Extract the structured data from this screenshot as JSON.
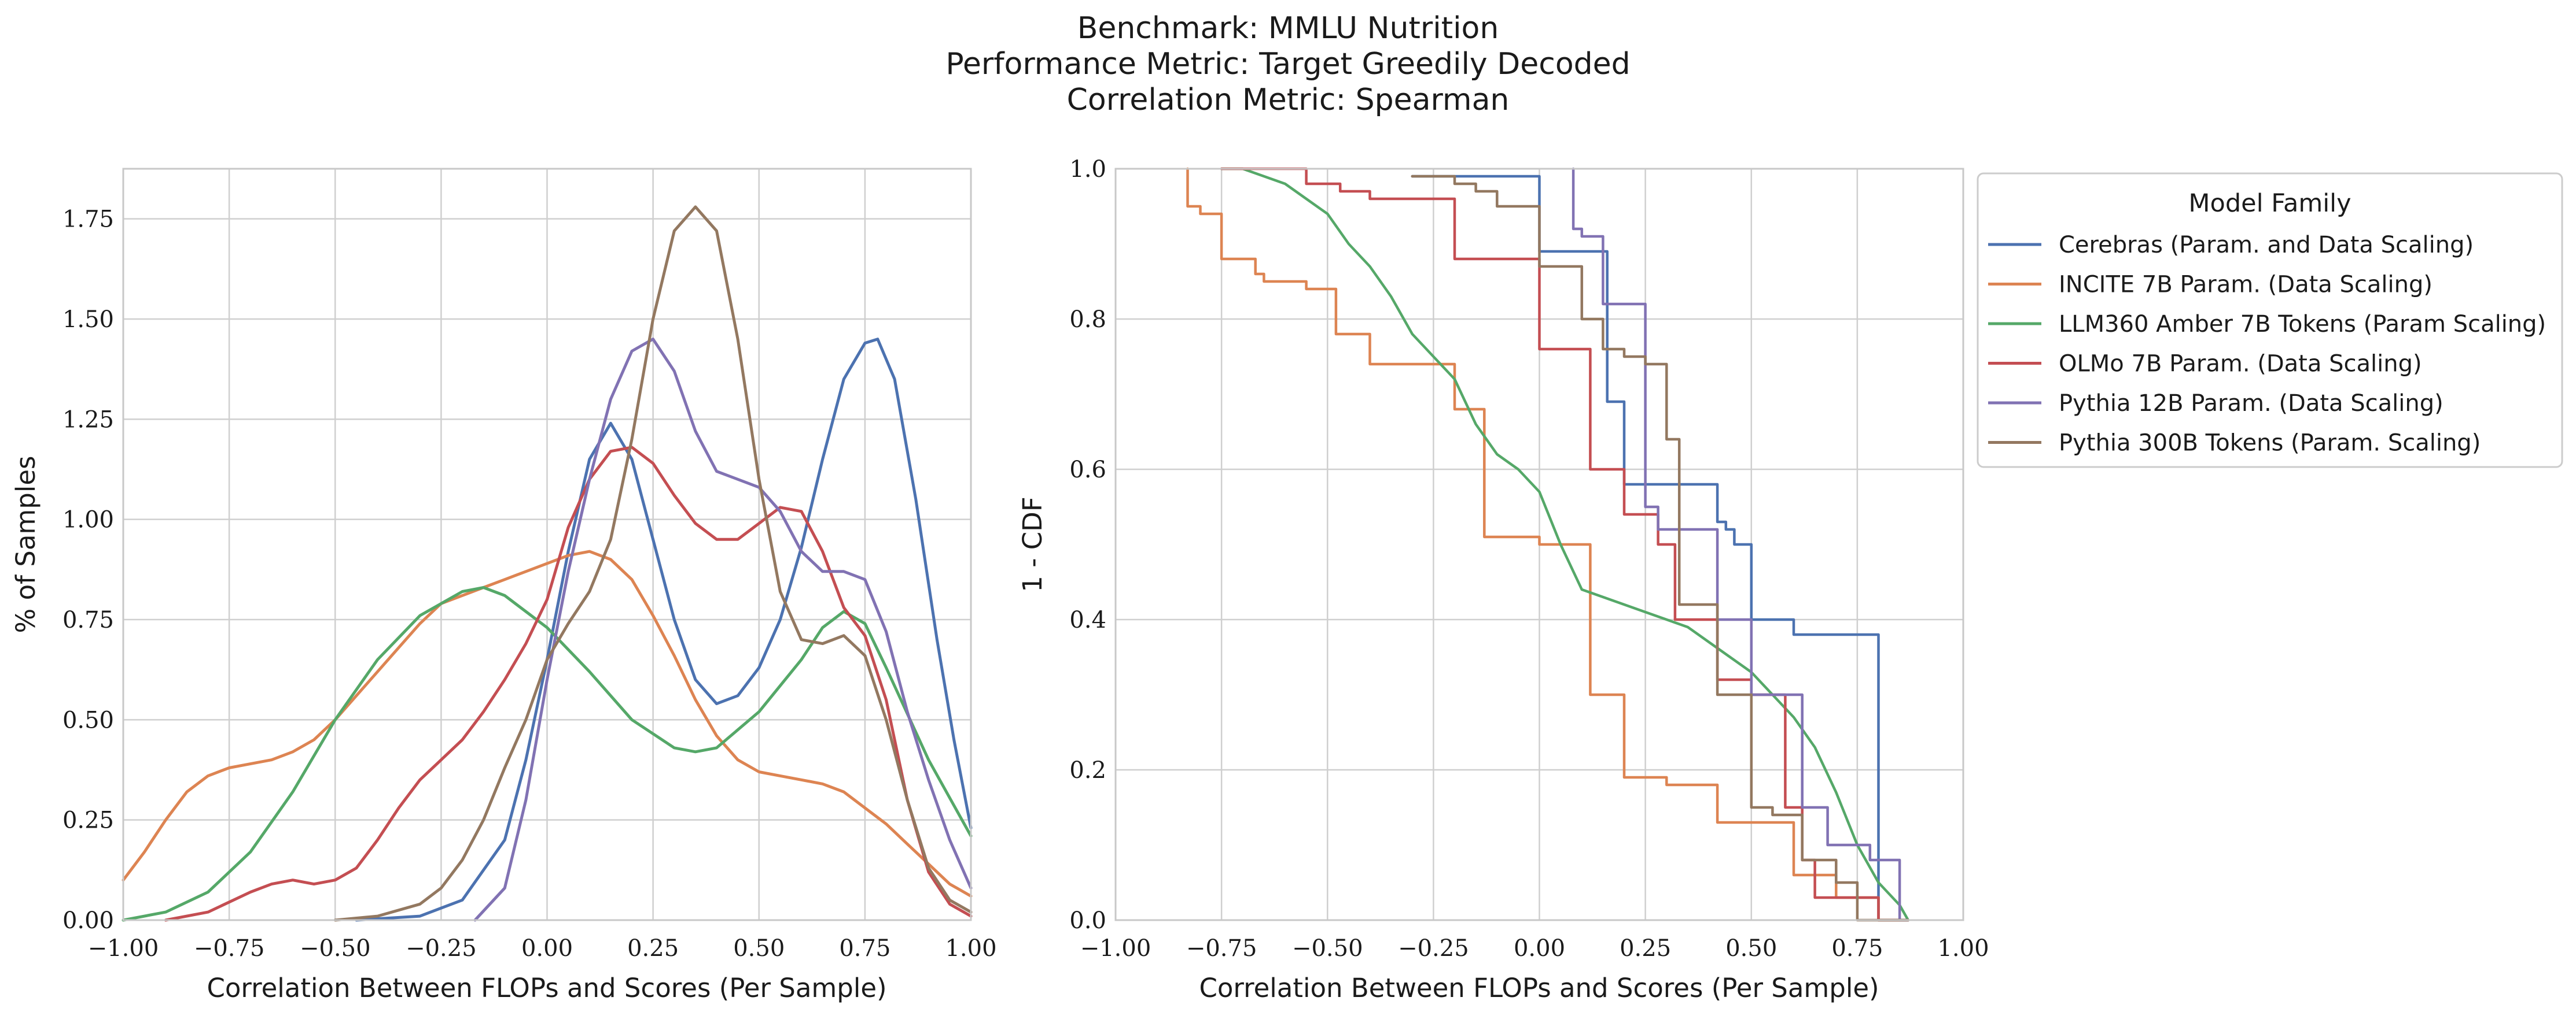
{
  "figure": {
    "title_lines": [
      "Benchmark: MMLU Nutrition",
      "Performance Metric: Target Greedily Decoded",
      "Correlation Metric: Spearman"
    ]
  },
  "colors": {
    "Cerebras": "#4c72b0",
    "INCITE": "#dd8452",
    "LLM360": "#55a868",
    "OLMo": "#c44e52",
    "Pythia12B": "#8172b3",
    "Pythia300B": "#937860",
    "grid": "#cfcfcf",
    "spine": "#c8c8c8"
  },
  "chart_data": [
    {
      "type": "line",
      "subtype": "kde",
      "xlabel": "Correlation Between FLOPs and Scores (Per Sample)",
      "ylabel": "% of Samples",
      "xlim": [
        -1.0,
        1.0
      ],
      "ylim": [
        0.0,
        1.875
      ],
      "xticks": [
        "−1.00",
        "−0.75",
        "−0.50",
        "−0.25",
        "0.00",
        "0.25",
        "0.50",
        "0.75",
        "1.00"
      ],
      "yticks": [
        "0.00",
        "0.25",
        "0.50",
        "0.75",
        "1.00",
        "1.25",
        "1.50",
        "1.75"
      ],
      "grid": true,
      "series": [
        {
          "name": "Cerebras (Param. and Data Scaling)",
          "color_key": "Cerebras",
          "x": [
            -0.45,
            -0.3,
            -0.2,
            -0.1,
            -0.05,
            0.0,
            0.05,
            0.1,
            0.15,
            0.2,
            0.25,
            0.3,
            0.35,
            0.4,
            0.45,
            0.5,
            0.55,
            0.6,
            0.65,
            0.7,
            0.75,
            0.78,
            0.82,
            0.87,
            0.92,
            0.96,
            1.0
          ],
          "y": [
            0.0,
            0.01,
            0.05,
            0.2,
            0.4,
            0.65,
            0.92,
            1.15,
            1.24,
            1.15,
            0.95,
            0.75,
            0.6,
            0.54,
            0.56,
            0.63,
            0.75,
            0.93,
            1.15,
            1.35,
            1.44,
            1.45,
            1.35,
            1.05,
            0.7,
            0.45,
            0.23
          ]
        },
        {
          "name": "INCITE 7B Param. (Data Scaling)",
          "color_key": "INCITE",
          "x": [
            -1.0,
            -0.95,
            -0.9,
            -0.85,
            -0.8,
            -0.75,
            -0.7,
            -0.65,
            -0.6,
            -0.55,
            -0.5,
            -0.45,
            -0.4,
            -0.35,
            -0.3,
            -0.25,
            -0.2,
            -0.15,
            -0.1,
            -0.05,
            0.0,
            0.05,
            0.1,
            0.15,
            0.2,
            0.25,
            0.3,
            0.35,
            0.4,
            0.45,
            0.5,
            0.55,
            0.6,
            0.65,
            0.7,
            0.75,
            0.8,
            0.85,
            0.9,
            0.95,
            1.0
          ],
          "y": [
            0.1,
            0.17,
            0.25,
            0.32,
            0.36,
            0.38,
            0.39,
            0.4,
            0.42,
            0.45,
            0.5,
            0.56,
            0.62,
            0.68,
            0.74,
            0.79,
            0.81,
            0.83,
            0.85,
            0.87,
            0.89,
            0.91,
            0.92,
            0.9,
            0.85,
            0.76,
            0.66,
            0.55,
            0.46,
            0.4,
            0.37,
            0.36,
            0.35,
            0.34,
            0.32,
            0.28,
            0.24,
            0.19,
            0.14,
            0.09,
            0.06
          ]
        },
        {
          "name": "LLM360 Amber 7B Tokens (Param Scaling)",
          "color_key": "LLM360",
          "x": [
            -1.0,
            -0.9,
            -0.8,
            -0.7,
            -0.6,
            -0.5,
            -0.4,
            -0.3,
            -0.2,
            -0.15,
            -0.1,
            0.0,
            0.1,
            0.2,
            0.3,
            0.35,
            0.4,
            0.5,
            0.6,
            0.65,
            0.7,
            0.75,
            0.8,
            0.9,
            1.0
          ],
          "y": [
            0.0,
            0.02,
            0.07,
            0.17,
            0.32,
            0.5,
            0.65,
            0.76,
            0.82,
            0.83,
            0.81,
            0.73,
            0.62,
            0.5,
            0.43,
            0.42,
            0.43,
            0.52,
            0.65,
            0.73,
            0.77,
            0.74,
            0.63,
            0.4,
            0.21
          ]
        },
        {
          "name": "OLMo 7B Param. (Data Scaling)",
          "color_key": "OLMo",
          "x": [
            -0.9,
            -0.8,
            -0.7,
            -0.65,
            -0.6,
            -0.55,
            -0.5,
            -0.45,
            -0.4,
            -0.35,
            -0.3,
            -0.25,
            -0.2,
            -0.15,
            -0.1,
            -0.05,
            0.0,
            0.05,
            0.1,
            0.15,
            0.2,
            0.25,
            0.3,
            0.35,
            0.4,
            0.45,
            0.5,
            0.55,
            0.6,
            0.65,
            0.7,
            0.75,
            0.8,
            0.85,
            0.9,
            0.95,
            1.0
          ],
          "y": [
            0.0,
            0.02,
            0.07,
            0.09,
            0.1,
            0.09,
            0.1,
            0.13,
            0.2,
            0.28,
            0.35,
            0.4,
            0.45,
            0.52,
            0.6,
            0.69,
            0.8,
            0.98,
            1.1,
            1.17,
            1.18,
            1.14,
            1.06,
            0.99,
            0.95,
            0.95,
            0.99,
            1.03,
            1.02,
            0.92,
            0.78,
            0.71,
            0.55,
            0.3,
            0.12,
            0.04,
            0.01
          ]
        },
        {
          "name": "Pythia 12B Param. (Data Scaling)",
          "color_key": "Pythia12B",
          "x": [
            -0.17,
            -0.1,
            -0.05,
            0.0,
            0.05,
            0.1,
            0.15,
            0.2,
            0.25,
            0.3,
            0.35,
            0.4,
            0.45,
            0.5,
            0.55,
            0.6,
            0.65,
            0.7,
            0.75,
            0.8,
            0.85,
            0.9,
            0.95,
            1.0
          ],
          "y": [
            0.0,
            0.08,
            0.3,
            0.6,
            0.87,
            1.1,
            1.3,
            1.42,
            1.45,
            1.37,
            1.22,
            1.12,
            1.1,
            1.08,
            1.02,
            0.92,
            0.87,
            0.87,
            0.85,
            0.72,
            0.52,
            0.35,
            0.2,
            0.08
          ]
        },
        {
          "name": "Pythia 300B Tokens (Param. Scaling)",
          "color_key": "Pythia300B",
          "x": [
            -0.5,
            -0.4,
            -0.3,
            -0.25,
            -0.2,
            -0.15,
            -0.1,
            -0.05,
            0.0,
            0.05,
            0.1,
            0.15,
            0.2,
            0.25,
            0.3,
            0.35,
            0.4,
            0.45,
            0.5,
            0.55,
            0.6,
            0.65,
            0.7,
            0.75,
            0.8,
            0.85,
            0.9,
            0.95,
            1.0
          ],
          "y": [
            0.0,
            0.01,
            0.04,
            0.08,
            0.15,
            0.25,
            0.38,
            0.5,
            0.65,
            0.74,
            0.82,
            0.95,
            1.2,
            1.5,
            1.72,
            1.78,
            1.72,
            1.45,
            1.1,
            0.82,
            0.7,
            0.69,
            0.71,
            0.66,
            0.5,
            0.3,
            0.13,
            0.05,
            0.02
          ]
        }
      ]
    },
    {
      "type": "line",
      "subtype": "step",
      "xlabel": "Correlation Between FLOPs and Scores (Per Sample)",
      "ylabel": "1 - CDF",
      "xlim": [
        -1.0,
        1.0
      ],
      "ylim": [
        0.0,
        1.0
      ],
      "xticks": [
        "−1.00",
        "−0.75",
        "−0.50",
        "−0.25",
        "0.00",
        "0.25",
        "0.50",
        "0.75",
        "1.00"
      ],
      "yticks": [
        "0.0",
        "0.2",
        "0.4",
        "0.6",
        "0.8",
        "1.0"
      ],
      "grid": true,
      "legend": {
        "title": "Model Family",
        "position": "outside-right"
      },
      "series": [
        {
          "name": "Cerebras (Param. and Data Scaling)",
          "color_key": "Cerebras",
          "x": [
            -0.3,
            0.0,
            0.0,
            0.16,
            0.16,
            0.2,
            0.2,
            0.42,
            0.42,
            0.44,
            0.44,
            0.46,
            0.46,
            0.5,
            0.5,
            0.6,
            0.6,
            0.62,
            0.62,
            0.8,
            0.8,
            0.87
          ],
          "y": [
            0.99,
            0.99,
            0.89,
            0.89,
            0.69,
            0.69,
            0.58,
            0.58,
            0.53,
            0.53,
            0.52,
            0.52,
            0.5,
            0.5,
            0.4,
            0.4,
            0.38,
            0.38,
            0.38,
            0.38,
            0.0,
            0.0
          ]
        },
        {
          "name": "INCITE 7B Param. (Data Scaling)",
          "color_key": "INCITE",
          "x": [
            -0.83,
            -0.83,
            -0.8,
            -0.8,
            -0.75,
            -0.75,
            -0.67,
            -0.67,
            -0.65,
            -0.65,
            -0.55,
            -0.55,
            -0.48,
            -0.48,
            -0.4,
            -0.4,
            -0.2,
            -0.2,
            -0.13,
            -0.13,
            0.0,
            0.0,
            0.12,
            0.12,
            0.2,
            0.2,
            0.3,
            0.3,
            0.42,
            0.42,
            0.6,
            0.6,
            0.7,
            0.7,
            0.8,
            0.8,
            0.87
          ],
          "y": [
            1.0,
            0.95,
            0.95,
            0.94,
            0.94,
            0.88,
            0.88,
            0.86,
            0.86,
            0.85,
            0.85,
            0.84,
            0.84,
            0.78,
            0.78,
            0.74,
            0.74,
            0.68,
            0.68,
            0.51,
            0.51,
            0.5,
            0.5,
            0.3,
            0.3,
            0.19,
            0.19,
            0.18,
            0.18,
            0.13,
            0.13,
            0.06,
            0.06,
            0.03,
            0.03,
            0.0,
            0.0
          ]
        },
        {
          "name": "LLM360 Amber 7B Tokens (Param Scaling)",
          "color_key": "LLM360",
          "x": [
            -0.75,
            -0.7,
            -0.65,
            -0.6,
            -0.55,
            -0.5,
            -0.45,
            -0.4,
            -0.35,
            -0.3,
            -0.25,
            -0.2,
            -0.15,
            -0.1,
            -0.05,
            0.0,
            0.05,
            0.1,
            0.15,
            0.2,
            0.25,
            0.3,
            0.35,
            0.4,
            0.45,
            0.5,
            0.55,
            0.6,
            0.65,
            0.7,
            0.75,
            0.8,
            0.85,
            0.87
          ],
          "y": [
            1.0,
            1.0,
            0.99,
            0.98,
            0.96,
            0.94,
            0.9,
            0.87,
            0.83,
            0.78,
            0.75,
            0.72,
            0.66,
            0.62,
            0.6,
            0.57,
            0.5,
            0.44,
            0.43,
            0.42,
            0.41,
            0.4,
            0.39,
            0.37,
            0.35,
            0.33,
            0.3,
            0.27,
            0.23,
            0.17,
            0.1,
            0.05,
            0.02,
            0.0
          ]
        },
        {
          "name": "OLMo 7B Param. (Data Scaling)",
          "color_key": "OLMo",
          "x": [
            -0.75,
            -0.55,
            -0.55,
            -0.47,
            -0.47,
            -0.4,
            -0.4,
            -0.2,
            -0.2,
            0.0,
            0.0,
            0.12,
            0.12,
            0.2,
            0.2,
            0.28,
            0.28,
            0.32,
            0.32,
            0.42,
            0.42,
            0.5,
            0.5,
            0.58,
            0.58,
            0.62,
            0.62,
            0.65,
            0.65,
            0.8,
            0.8,
            0.87
          ],
          "y": [
            1.0,
            1.0,
            0.98,
            0.98,
            0.97,
            0.97,
            0.96,
            0.96,
            0.88,
            0.88,
            0.76,
            0.76,
            0.6,
            0.6,
            0.54,
            0.54,
            0.5,
            0.5,
            0.4,
            0.4,
            0.32,
            0.32,
            0.3,
            0.3,
            0.15,
            0.15,
            0.08,
            0.08,
            0.03,
            0.03,
            0.0,
            0.0
          ]
        },
        {
          "name": "Pythia 12B Param. (Data Scaling)",
          "color_key": "Pythia12B",
          "x": [
            0.08,
            0.08,
            0.1,
            0.1,
            0.15,
            0.15,
            0.25,
            0.25,
            0.28,
            0.28,
            0.42,
            0.42,
            0.5,
            0.5,
            0.62,
            0.62,
            0.68,
            0.68,
            0.78,
            0.78,
            0.85,
            0.85,
            0.87
          ],
          "y": [
            1.0,
            0.92,
            0.92,
            0.91,
            0.91,
            0.82,
            0.82,
            0.55,
            0.55,
            0.52,
            0.52,
            0.4,
            0.4,
            0.3,
            0.3,
            0.15,
            0.15,
            0.1,
            0.1,
            0.08,
            0.08,
            0.0,
            0.0
          ]
        },
        {
          "name": "Pythia 300B Tokens (Param. Scaling)",
          "color_key": "Pythia300B",
          "x": [
            -0.3,
            -0.2,
            -0.2,
            -0.15,
            -0.15,
            -0.1,
            -0.1,
            0.0,
            0.0,
            0.1,
            0.1,
            0.15,
            0.15,
            0.2,
            0.2,
            0.25,
            0.25,
            0.3,
            0.3,
            0.33,
            0.33,
            0.42,
            0.42,
            0.5,
            0.5,
            0.55,
            0.55,
            0.62,
            0.62,
            0.7,
            0.7,
            0.75,
            0.75,
            0.87
          ],
          "y": [
            0.99,
            0.99,
            0.98,
            0.98,
            0.97,
            0.97,
            0.95,
            0.95,
            0.87,
            0.87,
            0.8,
            0.8,
            0.76,
            0.76,
            0.75,
            0.75,
            0.74,
            0.74,
            0.64,
            0.64,
            0.42,
            0.42,
            0.3,
            0.3,
            0.15,
            0.15,
            0.14,
            0.14,
            0.08,
            0.08,
            0.05,
            0.05,
            0.0,
            0.0
          ]
        }
      ]
    }
  ]
}
